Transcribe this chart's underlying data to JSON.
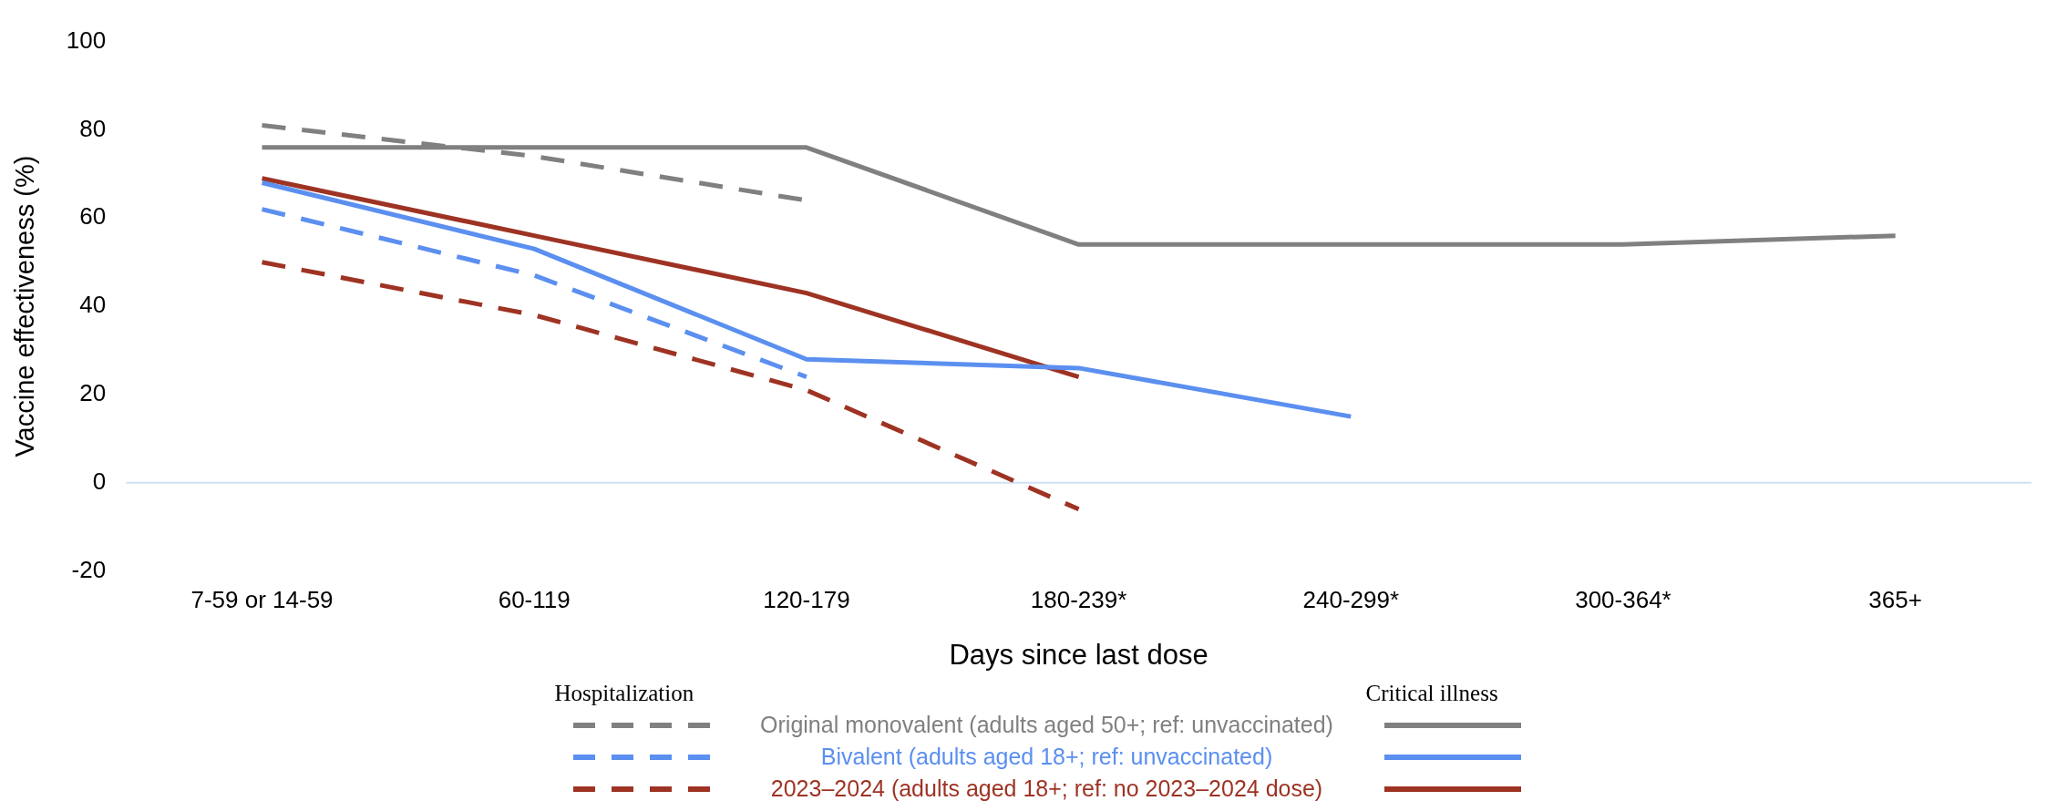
{
  "chart_data": {
    "type": "line",
    "xlabel": "Days since last dose",
    "ylabel": "Vaccine effectiveness (%)",
    "categories": [
      "7-59 or 14-59",
      "60-119",
      "120-179",
      "180-239*",
      "240-299*",
      "300-364*",
      "365+"
    ],
    "ylim": [
      -20,
      100
    ],
    "yticks": [
      -20,
      0,
      20,
      40,
      60,
      80,
      100
    ],
    "grid": false,
    "legend": "bottom",
    "marker": "none",
    "ref_lines": [
      {
        "axis": "y",
        "value": 0,
        "color": "#cfe2f3"
      }
    ],
    "annotations": [
      "Hospitalization",
      "Critical illness"
    ],
    "series": [
      {
        "name": "Original monovalent (adults aged 50+; ref: unvaccinated)",
        "color": "#808080",
        "line_style": "dashed",
        "values": [
          81,
          74,
          64,
          null,
          null,
          null,
          null
        ]
      },
      {
        "name": "Bivalent (adults aged 18+; ref: unvaccinated)",
        "color": "#5b8ff0",
        "line_style": "dashed",
        "values": [
          62,
          47,
          24,
          null,
          null,
          null,
          null
        ]
      },
      {
        "name": "2023–2024 (adults aged 18+; ref: no 2023–2024 dose)",
        "color": "#9e3323",
        "line_style": "dashed",
        "values": [
          50,
          38,
          21,
          -6,
          null,
          null,
          null
        ]
      },
      {
        "color": "#808080",
        "line_style": "solid",
        "values": [
          76,
          76,
          76,
          54,
          54,
          54,
          56
        ]
      },
      {
        "color": "#5b8ff0",
        "line_style": "solid",
        "values": [
          68,
          53,
          28,
          26,
          15,
          null,
          null
        ]
      },
      {
        "color": "#9e3323",
        "line_style": "solid",
        "values": [
          69,
          56,
          43,
          24,
          null,
          null,
          null
        ]
      }
    ]
  }
}
